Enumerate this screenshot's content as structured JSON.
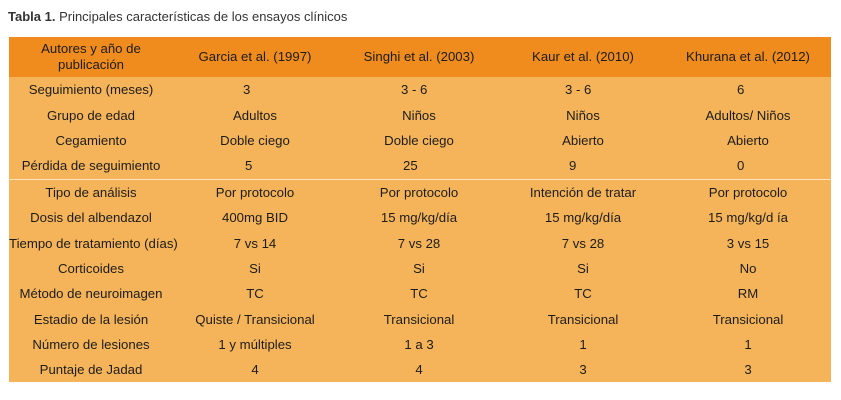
{
  "caption": {
    "label": "Tabla 1.",
    "text": " Principales características de los ensayos clínicos"
  },
  "table": {
    "header": {
      "first": "Autores y año de publicación",
      "columns": [
        "Garcia et al. (1997)",
        "Singhi et al. (2003)",
        "Kaur et al. (2010)",
        "Khurana et al. (2012)"
      ]
    },
    "rows": [
      {
        "label": "Seguimiento (meses)",
        "values": [
          "3",
          "3 - 6",
          "3 - 6",
          "6"
        ]
      },
      {
        "label": "Grupo de edad",
        "values": [
          "Adultos",
          "Niños",
          "Niños",
          "Adultos/ Niños"
        ]
      },
      {
        "label": "Cegamiento",
        "values": [
          "Doble ciego",
          "Doble ciego",
          "Abierto",
          "Abierto"
        ]
      },
      {
        "label": "Pérdida de seguimiento",
        "values": [
          "5",
          "25",
          "9",
          "0"
        ]
      },
      {
        "label": "Tipo de análisis",
        "values": [
          "Por protocolo",
          "Por protocolo",
          "Intención de tratar",
          "Por protocolo"
        ]
      },
      {
        "label": "Dosis del albendazol",
        "values": [
          "400mg BID",
          "15 mg/kg/día",
          "15 mg/kg/día",
          "15 mg/kg/d ía"
        ]
      },
      {
        "label": "Tiempo de tratamiento (días)",
        "values": [
          "7 vs 14",
          "7 vs 28",
          "7 vs 28",
          "3 vs 15"
        ]
      },
      {
        "label": "Corticoides",
        "values": [
          "Si",
          "Si",
          "Si",
          "No"
        ]
      },
      {
        "label": "Método de neuroimagen",
        "values": [
          "TC",
          "TC",
          "TC",
          "RM"
        ]
      },
      {
        "label": "Estadio de la lesión",
        "values": [
          "Quiste / Transicional",
          "Transicional",
          "Transicional",
          "Transicional"
        ]
      },
      {
        "label": "Número de lesiones",
        "values": [
          "1 y múltiples",
          "1 a 3",
          "1",
          "1"
        ]
      },
      {
        "label": "Puntaje de Jadad",
        "values": [
          "4",
          "4",
          "3",
          "3"
        ]
      }
    ]
  }
}
